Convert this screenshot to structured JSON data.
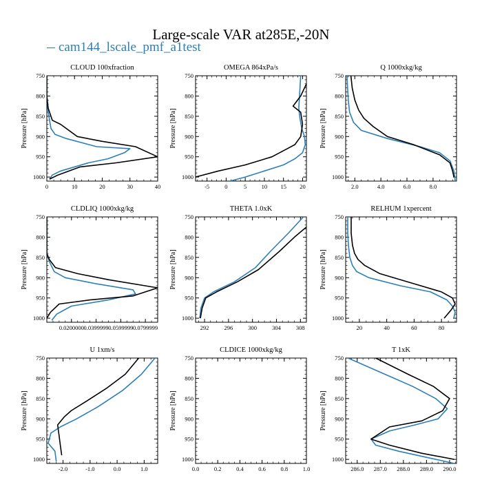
{
  "figure": {
    "title": "Large-scale VAR at285E,-20N",
    "legend": [
      {
        "label": "cam144_lscale_pmf_a1test",
        "color": "#2a7fb8"
      }
    ],
    "ref_color": "#000000"
  },
  "chart_data": [
    {
      "type": "line",
      "title": "CLOUD  100xfraction",
      "ylabel": "Pressure [hPa]",
      "xlim": [
        0,
        40
      ],
      "ylim": [
        750,
        1010
      ],
      "xticks": [
        0,
        10,
        20,
        30,
        40
      ],
      "xticklabels": [
        "0",
        "10",
        "20",
        "30",
        "40"
      ],
      "yticks": [
        750,
        800,
        850,
        900,
        950,
        1000
      ],
      "yticklabels": [
        "750",
        "800",
        "850",
        "900",
        "950",
        "1000"
      ],
      "series": [
        {
          "name": "cam144_lscale_pmf_a1test",
          "color": "#2a7fb8",
          "x": [
            0,
            0,
            0.5,
            1,
            1.5,
            3,
            7,
            18,
            30,
            28,
            22,
            15,
            5,
            2,
            1
          ],
          "y": [
            750,
            800,
            840,
            860,
            880,
            895,
            905,
            925,
            930,
            940,
            955,
            965,
            985,
            995,
            1005
          ]
        },
        {
          "name": "reference",
          "color": "#000000",
          "x": [
            0,
            0,
            0.5,
            2,
            5,
            11,
            20,
            32,
            40,
            25,
            12,
            4,
            1
          ],
          "y": [
            750,
            800,
            830,
            860,
            870,
            900,
            912,
            925,
            950,
            965,
            975,
            995,
            1005
          ]
        }
      ]
    },
    {
      "type": "line",
      "title": "OMEGA  864xPa/s",
      "ylabel": "Pressure [hPa]",
      "xlim": [
        -8,
        21
      ],
      "ylim": [
        750,
        1010
      ],
      "xticks": [
        -5,
        0,
        5,
        10,
        15,
        20
      ],
      "xticklabels": [
        "-5",
        "0",
        "5",
        "10",
        "15",
        "20"
      ],
      "yticks": [
        750,
        800,
        850,
        900,
        950,
        1000
      ],
      "yticklabels": [
        "750",
        "800",
        "850",
        "900",
        "950",
        "1000"
      ],
      "series": [
        {
          "name": "cam144_lscale_pmf_a1test",
          "color": "#2a7fb8",
          "x": [
            19.5,
            19.2,
            19,
            19.3,
            19.8,
            20.5,
            20.7,
            20,
            18,
            15,
            10,
            5,
            1
          ],
          "y": [
            750,
            800,
            830,
            855,
            880,
            900,
            920,
            940,
            955,
            970,
            985,
            1000,
            1010
          ]
        },
        {
          "name": "reference",
          "color": "#000000",
          "x": [
            21,
            19.5,
            17.5,
            19.5,
            20,
            19.5,
            18,
            16,
            12,
            5,
            -2,
            -8
          ],
          "y": [
            770,
            800,
            825,
            840,
            870,
            900,
            920,
            930,
            950,
            970,
            985,
            1000
          ]
        }
      ]
    },
    {
      "type": "line",
      "title": "Q  1000xkg/kg",
      "ylabel": "Pressure [hPa]",
      "xlim": [
        1.3,
        9.8
      ],
      "ylim": [
        750,
        1010
      ],
      "xticks": [
        2,
        4,
        6,
        8
      ],
      "xticklabels": [
        "2.0",
        "4.0",
        "6.0",
        "8.0"
      ],
      "yticks": [
        750,
        800,
        850,
        900,
        950,
        1000
      ],
      "yticklabels": [
        "750",
        "800",
        "850",
        "900",
        "950",
        "1000"
      ],
      "series": [
        {
          "name": "cam144_lscale_pmf_a1test",
          "color": "#2a7fb8",
          "x": [
            1.4,
            1.45,
            1.5,
            1.6,
            1.9,
            2.5,
            4.5,
            7,
            8.5,
            9.3,
            9.6,
            9.7
          ],
          "y": [
            750,
            780,
            810,
            840,
            865,
            885,
            905,
            925,
            940,
            960,
            985,
            1010
          ]
        },
        {
          "name": "reference",
          "color": "#000000",
          "x": [
            1.7,
            1.8,
            2,
            2.3,
            2.7,
            3.4,
            4.5,
            6.5,
            8.5,
            9.3,
            9.5,
            9.6
          ],
          "y": [
            750,
            780,
            810,
            835,
            855,
            875,
            900,
            920,
            945,
            965,
            985,
            1000
          ]
        }
      ]
    },
    {
      "type": "line",
      "title": "CLDLIQ  1000xkg/kg",
      "ylabel": "Pressure [hPa]",
      "xlim": [
        0,
        0.09
      ],
      "ylim": [
        750,
        1010
      ],
      "xticks": [
        0.02,
        0.04,
        0.06,
        0.08
      ],
      "xticklabels": [
        "0.0200000",
        "0.0399999",
        "0.0599999",
        "0.0799999"
      ],
      "yticks": [
        750,
        800,
        850,
        900,
        950,
        1000
      ],
      "yticklabels": [
        "750",
        "800",
        "850",
        "900",
        "950",
        "1000"
      ],
      "series": [
        {
          "name": "cam144_lscale_pmf_a1test",
          "color": "#2a7fb8",
          "x": [
            0,
            0,
            0,
            0.002,
            0.006,
            0.015,
            0.04,
            0.07,
            0.072,
            0.05,
            0.02,
            0.008,
            0.004
          ],
          "y": [
            750,
            800,
            840,
            860,
            885,
            900,
            915,
            930,
            940,
            955,
            970,
            990,
            1005
          ]
        },
        {
          "name": "reference",
          "color": "#000000",
          "x": [
            0,
            0,
            0,
            0.002,
            0.007,
            0.025,
            0.05,
            0.09,
            0.07,
            0.035,
            0.01,
            0.003,
            0
          ],
          "y": [
            750,
            800,
            840,
            855,
            875,
            890,
            905,
            925,
            945,
            955,
            965,
            985,
            1000
          ]
        }
      ]
    },
    {
      "type": "line",
      "title": "THETA  1.0xK",
      "ylabel": "Pressure [hPa]",
      "xlim": [
        290.5,
        309
      ],
      "ylim": [
        750,
        1010
      ],
      "xticks": [
        292,
        296,
        300,
        304,
        308
      ],
      "xticklabels": [
        "292",
        "296",
        "300",
        "304",
        "308"
      ],
      "yticks": [
        750,
        800,
        850,
        900,
        950,
        1000
      ],
      "yticklabels": [
        "750",
        "800",
        "850",
        "900",
        "950",
        "1000"
      ],
      "series": [
        {
          "name": "cam144_lscale_pmf_a1test",
          "color": "#2a7fb8",
          "x": [
            308.5,
            306,
            303,
            300.5,
            297,
            293.5,
            292,
            291.4,
            291.2
          ],
          "y": [
            750,
            790,
            835,
            875,
            910,
            935,
            950,
            975,
            1000
          ]
        },
        {
          "name": "reference",
          "color": "#000000",
          "x": [
            309,
            307,
            304.5,
            301,
            297.5,
            294,
            292.2,
            291.6,
            291.3
          ],
          "y": [
            775,
            800,
            835,
            880,
            910,
            935,
            950,
            975,
            1000
          ]
        }
      ]
    },
    {
      "type": "line",
      "title": "RELHUM  1xpercent",
      "ylabel": "Pressure [hPa]",
      "xlim": [
        10,
        91
      ],
      "ylim": [
        750,
        1010
      ],
      "xticks": [
        20,
        40,
        60,
        80
      ],
      "xticklabels": [
        "20",
        "40",
        "60",
        "80"
      ],
      "yticks": [
        750,
        800,
        850,
        900,
        950,
        1000
      ],
      "yticklabels": [
        "750",
        "800",
        "850",
        "900",
        "950",
        "1000"
      ],
      "series": [
        {
          "name": "cam144_lscale_pmf_a1test",
          "color": "#2a7fb8",
          "x": [
            11.5,
            11.5,
            12,
            13,
            15,
            18,
            27,
            50,
            72,
            84,
            88,
            90,
            89
          ],
          "y": [
            750,
            790,
            820,
            850,
            870,
            885,
            900,
            920,
            935,
            955,
            970,
            985,
            1000
          ]
        },
        {
          "name": "reference",
          "color": "#000000",
          "x": [
            14,
            14,
            15,
            16.5,
            19,
            24,
            35,
            60,
            80,
            88,
            90,
            87,
            82
          ],
          "y": [
            750,
            790,
            820,
            840,
            855,
            870,
            890,
            915,
            935,
            950,
            965,
            980,
            1000
          ]
        }
      ]
    },
    {
      "type": "line",
      "title": "U  1xm/s",
      "ylabel": "Pressure [hPa]",
      "xlim": [
        -2.6,
        1.5
      ],
      "ylim": [
        750,
        1010
      ],
      "xticks": [
        -2,
        -1,
        0,
        1
      ],
      "xticklabels": [
        "-2.0",
        "-1.0",
        "0.0",
        "1.0"
      ],
      "yticks": [
        750,
        800,
        850,
        900,
        950,
        1000
      ],
      "yticklabels": [
        "750",
        "800",
        "850",
        "900",
        "950",
        "1000"
      ],
      "series": [
        {
          "name": "cam144_lscale_pmf_a1test",
          "color": "#2a7fb8",
          "x": [
            1.4,
            0.9,
            0.2,
            -0.7,
            -1.5,
            -2.1,
            -2.45,
            -2.55,
            -2.3,
            -2.25
          ],
          "y": [
            750,
            790,
            830,
            870,
            900,
            920,
            935,
            960,
            980,
            1005
          ]
        },
        {
          "name": "reference",
          "color": "#000000",
          "x": [
            0.8,
            0.3,
            -0.4,
            -1.1,
            -1.7,
            -1.95,
            -2.2,
            -2.15,
            -2.1,
            -2.05
          ],
          "y": [
            750,
            790,
            825,
            855,
            880,
            895,
            915,
            940,
            965,
            990
          ]
        }
      ]
    },
    {
      "type": "line",
      "title": "CLDICE  1000xkg/kg",
      "ylabel": "Pressure [hPa]",
      "xlim": [
        0,
        1
      ],
      "ylim": [
        750,
        1010
      ],
      "xticks": [
        0,
        0.2,
        0.4,
        0.6,
        0.8,
        1
      ],
      "xticklabels": [
        "0.0",
        "0.2",
        "0.4",
        "0.6",
        "0.8",
        "1.0"
      ],
      "yticks": [
        750,
        800,
        850,
        900,
        950,
        1000
      ],
      "yticklabels": [
        "750",
        "800",
        "850",
        "900",
        "950",
        "1000"
      ],
      "series": []
    },
    {
      "type": "line",
      "title": "T  1xK",
      "ylabel": "Pressure [hPa]",
      "xlim": [
        285.5,
        290.3
      ],
      "ylim": [
        750,
        1010
      ],
      "xticks": [
        286,
        287,
        288,
        289,
        290
      ],
      "xticklabels": [
        "286.0",
        "287.0",
        "288.0",
        "289.0",
        "290.0"
      ],
      "yticks": [
        750,
        800,
        850,
        900,
        950,
        1000
      ],
      "yticklabels": [
        "750",
        "800",
        "850",
        "900",
        "950",
        "1000"
      ],
      "series": [
        {
          "name": "cam144_lscale_pmf_a1test",
          "color": "#2a7fb8",
          "x": [
            285.6,
            287.2,
            288.4,
            289.4,
            289.9,
            289.5,
            288.5,
            287.4,
            286.6,
            286.8,
            287.8,
            289,
            290.2
          ],
          "y": [
            750,
            790,
            820,
            850,
            875,
            900,
            915,
            930,
            950,
            965,
            980,
            995,
            1010
          ]
        },
        {
          "name": "reference",
          "color": "#000000",
          "x": [
            286.8,
            288.2,
            289.3,
            290,
            289.7,
            288.8,
            287.4,
            286.6,
            287.4,
            288.8,
            290.2
          ],
          "y": [
            750,
            790,
            820,
            850,
            880,
            905,
            920,
            950,
            965,
            985,
            1000
          ]
        }
      ]
    }
  ]
}
